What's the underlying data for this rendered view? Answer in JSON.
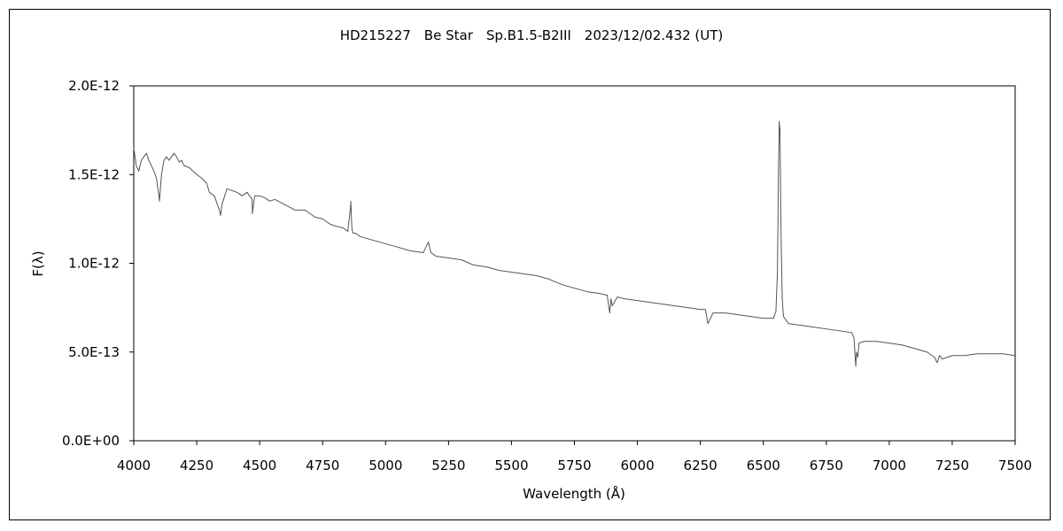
{
  "chart_data": {
    "type": "line",
    "title": "HD215227　Be Star　Sp.B1.5-B2III　2023/12/02.432 (UT)",
    "xlabel": "Wavelength (Å)",
    "ylabel": "F(λ)",
    "xlim": [
      4000,
      7500
    ],
    "ylim": [
      0,
      2e-12
    ],
    "grid": false,
    "x_ticks": [
      4000,
      4250,
      4500,
      4750,
      5000,
      5250,
      5500,
      5750,
      6000,
      6250,
      6500,
      6750,
      7000,
      7250,
      7500
    ],
    "x_tick_labels": [
      "4000",
      "4250",
      "4500",
      "4750",
      "5000",
      "5250",
      "5500",
      "5750",
      "6000",
      "6250",
      "6500",
      "6750",
      "7000",
      "7250",
      "7500"
    ],
    "y_ticks": [
      0,
      5e-13,
      1e-12,
      1.5e-12,
      2e-12
    ],
    "y_tick_labels": [
      "0.0E+00",
      "5.0E-13",
      "1.0E-12",
      "1.5E-12",
      "2.0E-12"
    ],
    "series": [
      {
        "color": "#555555",
        "x": [
          4000,
          4010,
          4020,
          4030,
          4040,
          4050,
          4060,
          4070,
          4080,
          4090,
          4100,
          4102,
          4110,
          4120,
          4130,
          4140,
          4150,
          4160,
          4170,
          4180,
          4190,
          4200,
          4220,
          4250,
          4270,
          4290,
          4300,
          4320,
          4340,
          4345,
          4350,
          4370,
          4390,
          4410,
          4430,
          4450,
          4470,
          4471,
          4480,
          4500,
          4520,
          4540,
          4560,
          4600,
          4640,
          4680,
          4700,
          4720,
          4750,
          4780,
          4800,
          4830,
          4850,
          4861,
          4862,
          4866,
          4870,
          4880,
          4900,
          4950,
          5000,
          5050,
          5100,
          5150,
          5170,
          5180,
          5200,
          5250,
          5300,
          5350,
          5400,
          5450,
          5500,
          5550,
          5600,
          5650,
          5700,
          5750,
          5800,
          5850,
          5880,
          5890,
          5895,
          5900,
          5920,
          5950,
          6000,
          6050,
          6100,
          6150,
          6200,
          6250,
          6270,
          6280,
          6300,
          6350,
          6400,
          6450,
          6500,
          6520,
          6540,
          6550,
          6556,
          6560,
          6563,
          6566,
          6570,
          6575,
          6580,
          6600,
          6650,
          6700,
          6750,
          6800,
          6850,
          6860,
          6867,
          6870,
          6875,
          6880,
          6900,
          6950,
          7000,
          7050,
          7100,
          7150,
          7180,
          7190,
          7200,
          7210,
          7250,
          7300,
          7350,
          7400,
          7450,
          7500
        ],
        "values": [
          1.65e-12,
          1.55e-12,
          1.52e-12,
          1.58e-12,
          1.6e-12,
          1.62e-12,
          1.58e-12,
          1.55e-12,
          1.52e-12,
          1.48e-12,
          1.38e-12,
          1.35e-12,
          1.5e-12,
          1.58e-12,
          1.6e-12,
          1.58e-12,
          1.6e-12,
          1.62e-12,
          1.6e-12,
          1.57e-12,
          1.58e-12,
          1.55e-12,
          1.54e-12,
          1.5e-12,
          1.48e-12,
          1.45e-12,
          1.4e-12,
          1.38e-12,
          1.3e-12,
          1.27e-12,
          1.33e-12,
          1.42e-12,
          1.41e-12,
          1.4e-12,
          1.38e-12,
          1.4e-12,
          1.36e-12,
          1.28e-12,
          1.38e-12,
          1.38e-12,
          1.37e-12,
          1.35e-12,
          1.36e-12,
          1.33e-12,
          1.3e-12,
          1.3e-12,
          1.28e-12,
          1.26e-12,
          1.25e-12,
          1.22e-12,
          1.21e-12,
          1.2e-12,
          1.18e-12,
          1.32e-12,
          1.35e-12,
          1.2e-12,
          1.17e-12,
          1.17e-12,
          1.15e-12,
          1.13e-12,
          1.11e-12,
          1.09e-12,
          1.07e-12,
          1.06e-12,
          1.12e-12,
          1.06e-12,
          1.04e-12,
          1.03e-12,
          1.02e-12,
          9.9e-13,
          9.8e-13,
          9.6e-13,
          9.5e-13,
          9.4e-13,
          9.3e-13,
          9.1e-13,
          8.8e-13,
          8.6e-13,
          8.4e-13,
          8.3e-13,
          8.2e-13,
          7.2e-13,
          8e-13,
          7.6e-13,
          8.1e-13,
          8e-13,
          7.9e-13,
          7.8e-13,
          7.7e-13,
          7.6e-13,
          7.5e-13,
          7.4e-13,
          7.4e-13,
          6.6e-13,
          7.2e-13,
          7.2e-13,
          7.1e-13,
          7e-13,
          6.9e-13,
          6.9e-13,
          6.9e-13,
          7.3e-13,
          9.5e-13,
          1.5e-12,
          1.8e-12,
          1.75e-12,
          1.2e-12,
          8e-13,
          7e-13,
          6.6e-13,
          6.5e-13,
          6.4e-13,
          6.3e-13,
          6.2e-13,
          6.1e-13,
          5.8e-13,
          4.2e-13,
          5e-13,
          4.7e-13,
          5.5e-13,
          5.6e-13,
          5.6e-13,
          5.5e-13,
          5.4e-13,
          5.2e-13,
          5e-13,
          4.7e-13,
          4.4e-13,
          4.8e-13,
          4.6e-13,
          4.8e-13,
          4.8e-13,
          4.9e-13,
          4.9e-13,
          4.9e-13,
          4.8e-13
        ]
      }
    ]
  }
}
